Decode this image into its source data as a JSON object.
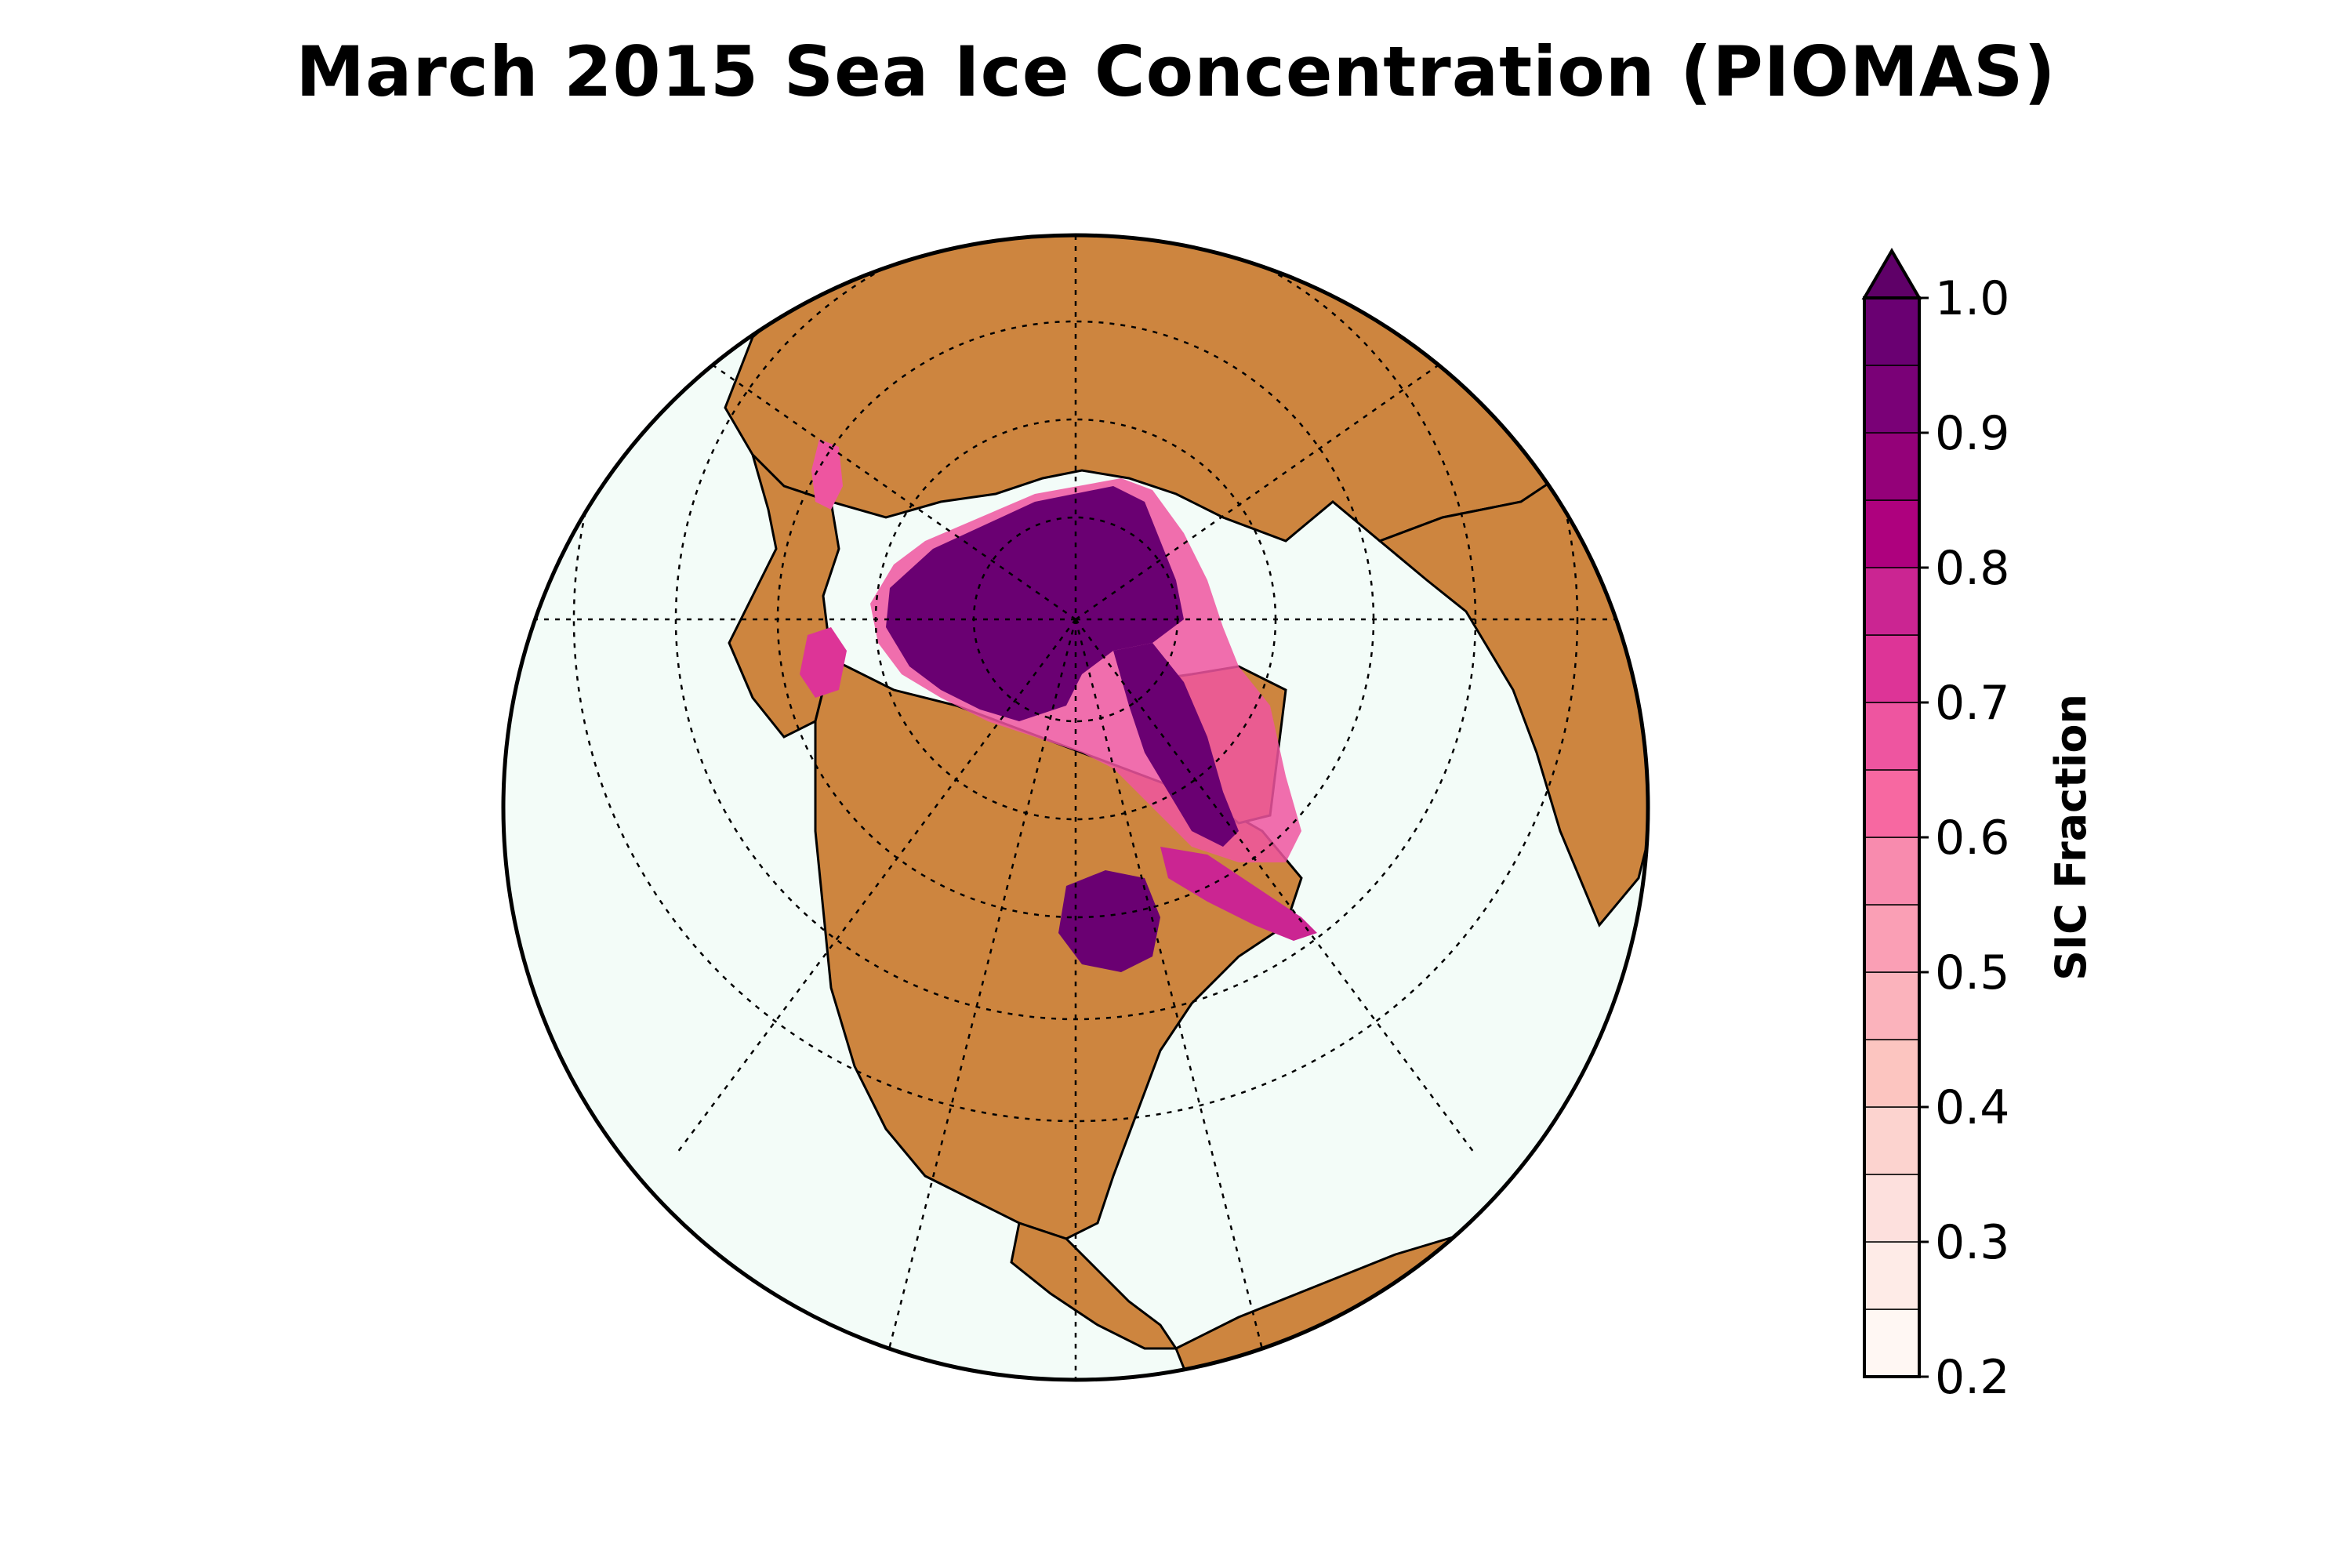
{
  "title": "March 2015 Sea Ice Concentration (PIOMAS)",
  "colors": {
    "ocean": "#f3fcf8",
    "land": "#cd853f",
    "coast": "#000000",
    "graticule": "#000000"
  },
  "colorbar": {
    "label": "SIC Fraction",
    "extend": "max",
    "ticks": [
      "0.2",
      "0.3",
      "0.4",
      "0.5",
      "0.6",
      "0.7",
      "0.8",
      "0.9",
      "1.0"
    ],
    "levels": [
      0.2,
      0.25,
      0.3,
      0.35,
      0.4,
      0.45,
      0.5,
      0.55,
      0.6,
      0.65,
      0.7,
      0.75,
      0.8,
      0.85,
      0.9,
      0.95,
      1.0
    ],
    "bin_colors": [
      "#fff7f3",
      "#feebe7",
      "#fde0dd",
      "#fcd3cf",
      "#fcc5c0",
      "#fbb3bc",
      "#fa9fb5",
      "#f88bae",
      "#f768a1",
      "#ee55a0",
      "#dd3497",
      "#cb2592",
      "#ae017e",
      "#940179",
      "#7a0177",
      "#6a0072"
    ],
    "extend_color": "#5f0068"
  },
  "chart_data": {
    "type": "heatmap",
    "projection": "orthographic (north polar)",
    "variable": "sea ice concentration",
    "units": "fraction",
    "range": [
      0.2,
      1.0
    ],
    "month": "March 2015"
  }
}
